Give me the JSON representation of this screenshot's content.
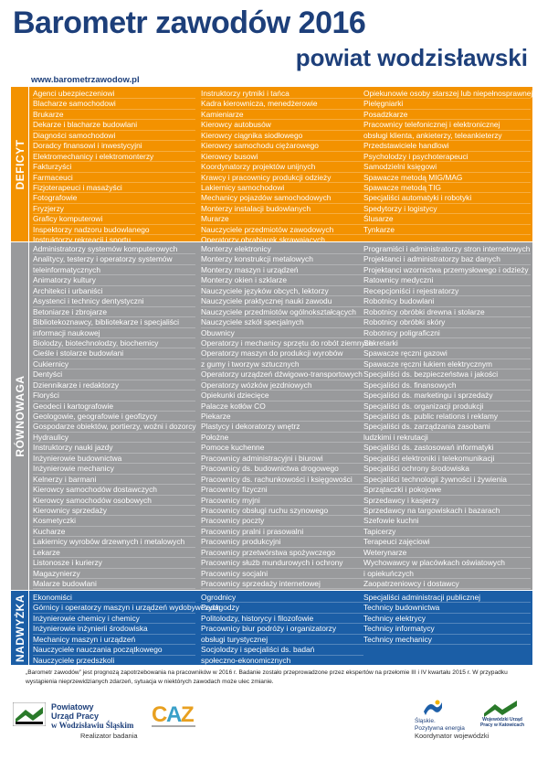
{
  "header": {
    "title": "Barometr zawodów 2016",
    "subtitle": "powiat wodzisławski",
    "url": "www.barometrzawodow.pl"
  },
  "sections": [
    {
      "label": "DEFICYT",
      "columns": [
        [
          "Agenci ubezpieczeniowi",
          "Blacharze samochodowi",
          "Brukarze",
          "Dekarze i blacharze budowlani",
          "Diagności samochodowi",
          "Doradcy finansowi i inwestycyjni",
          "Elektromechanicy i elektromonterzy",
          "Fakturzyści",
          "Farmaceuci",
          "Fizjoterapeuci i masażyści",
          "Fotografowie",
          "Fryzjerzy",
          "Graficy komputerowi",
          "Inspektorzy nadzoru budowlanego",
          "Instruktorzy rekreacji i sportu"
        ],
        [
          "Instruktorzy rytmiki i tańca",
          "Kadra kierownicza, menedżerowie",
          "Kamieniarze",
          "Kierowcy autobusów",
          "Kierowcy ciągnika siodłowego",
          "Kierowcy samochodu ciężarowego",
          "Kierowcy busowi",
          "Koordynatorzy projektów unijnych",
          "Krawcy i pracownicy produkcji odzieży",
          "Lakiernicy samochodowi",
          "Mechanicy pojazdów samochodowych",
          "Monterzy instalacji budowlanych",
          "Murarze",
          "Nauczyciele przedmiotów zawodowych",
          "Operatorzy obrabiarek skrawających"
        ],
        [
          "Opiekunowie osoby starszej lub niepełnosprawnej",
          "Pielęgniarki",
          "Posadzkarze",
          "Pracownicy telefonicznej i elektronicznej",
          "obsługi klienta, ankieterzy, teleankieterzy",
          "Przedstawiciele handlowi",
          "Psycholodzy i psychoterapeuci",
          "Samodzielni księgowi",
          "Spawacze metodą MIG/MAG",
          "Spawacze metodą TIG",
          "Specjaliści automatyki i robotyki",
          "Spedytorzy i logistycy",
          "Ślusarze",
          "Tynkarze"
        ]
      ]
    },
    {
      "label": "RÓWNOWAGA",
      "columns": [
        [
          "Administratorzy systemów komputerowych",
          "Analitycy, testerzy i operatorzy systemów",
          "teleinformatycznych",
          "Animatorzy kultury",
          "Architekci i urbaniści",
          "Asystenci i technicy dentystyczni",
          "Betoniarze i zbrojarze",
          "Bibliotekoznawcy, bibliotekarze i specjaliści",
          "informacji naukowej",
          "Biolodzy, biotechnolodzy, biochemicy",
          "Cieśle i stolarze budowlani",
          "Cukiernicy",
          "Dentyści",
          "Dziennikarze i redaktorzy",
          "Floryści",
          "Geodeci i kartografowie",
          "Geologowie, geografowie i geofizycy",
          "Gospodarze obiektów, portierzy, woźni i dozorcy",
          "Hydraulicy",
          "Instruktorzy nauki jazdy",
          "Inżynierowie budownictwa",
          "Inżynierowie mechanicy",
          "Kelnerzy i barmani",
          "Kierowcy samochodów dostawczych",
          "Kierowcy samochodów osobowych",
          "Kierownicy sprzedaży",
          "Kosmetyczki",
          "Kucharze",
          "Lakiernicy wyrobów drzewnych i metalowych",
          "Lekarze",
          "Listonosze i kurierzy",
          "Magazynierzy",
          "Malarze budowlani",
          "Masarze i przetwórcy ryb"
        ],
        [
          "Monterzy elektronicy",
          "Monterzy konstrukcji metalowych",
          "Monterzy maszyn i urządzeń",
          "Monterzy okien i szklarze",
          "Nauczyciele języków obcych, lektorzy",
          "Nauczyciele praktycznej nauki zawodu",
          "Nauczyciele przedmiotów ogólnokształcących",
          "Nauczyciele szkół specjalnych",
          "Obuwnicy",
          "Operatorzy i mechanicy sprzętu do robót ziemnych",
          "Operatorzy maszyn do produkcji wyrobów",
          "z gumy i tworzyw sztucznych",
          "Operatorzy urządzeń dźwigowo-transportowych",
          "Operatorzy wózków jezdniowych",
          "Opiekunki dziecięce",
          "Palacze kotłów CO",
          "Piekarze",
          "Plastycy i dekoratorzy wnętrz",
          "Położne",
          "Pomoce kuchenne",
          "Pracownicy administracyjni i biurowi",
          "Pracownicy ds. budownictwa drogowego",
          "Pracownicy ds. rachunkowości i księgowości",
          "Pracownicy fizyczni",
          "Pracownicy myjni",
          "Pracownicy obsługi ruchu szynowego",
          "Pracownicy poczty",
          "Pracownicy pralni i prasowalni",
          "Pracownicy produkcyjni",
          "Pracownicy przetwórstwa spożywczego",
          "Pracownicy służb mundurowych i ochrony",
          "Pracownicy socjalni",
          "Pracownicy sprzedaży internetowej",
          "Prawnicy"
        ],
        [
          "Programiści i administratorzy stron internetowych",
          "Projektanci i administratorzy baz danych",
          "Projektanci wzornictwa przemysłowego i odzieży",
          "Ratownicy medyczni",
          "Recepcjoniści i rejestratorzy",
          "Robotnicy budowlani",
          "Robotnicy obróbki drewna i stolarze",
          "Robotnicy obróbki skóry",
          "Robotnicy poligraficzni",
          "Sekretarki",
          "Spawacze ręczni gazowi",
          "Spawacze ręczni łukiem elektrycznym",
          "Specjaliści ds. bezpieczeństwa i jakości",
          "Specjaliści ds. finansowych",
          "Specjaliści ds. marketingu i sprzedaży",
          "Specjaliści ds. organizacji produkcji",
          "Specjaliści ds. public relations i reklamy",
          "Specjaliści ds. zarządzania zasobami",
          "ludzkimi i rekrutacji",
          "Specjaliści ds. zastosowań informatyki",
          "Specjaliści elektroniki i telekomunikacji",
          "Specjaliści ochrony środowiska",
          "Specjaliści technologii żywności i żywienia",
          "Sprzątaczki i pokojowe",
          "Sprzedawcy i kasjerzy",
          "Sprzedawcy na targowiskach i bazarach",
          "Szefowie kuchni",
          "Tapicerzy",
          "Terapeuci zajęciowi",
          "Weterynarze",
          "Wychowawcy w placówkach oświatowych",
          "i opiekuńczych",
          "Zaopatrzeniowcy i dostawcy"
        ]
      ]
    },
    {
      "label": "NADWYŻKA",
      "columns": [
        [
          "Ekonomiści",
          "Górnicy i operatorzy maszyn i urządzeń wydobywczych",
          "Inżynierowie chemicy i chemicy",
          "Inżynierowie inżynierii środowiska",
          "Mechanicy maszyn i urządzeń",
          "Nauczyciele nauczania początkowego",
          "Nauczyciele przedszkoli"
        ],
        [
          "Ogrodnicy",
          "Pedagodzy",
          "Politolodzy, historycy i filozofowie",
          "Pracownicy biur podróży i organizatorzy",
          "obsługi turystycznej",
          "Socjolodzy i specjaliści ds. badań",
          "społeczno-ekonomicznych"
        ],
        [
          "Specjaliści administracji publicznej",
          "Technicy budownictwa",
          "Technicy elektrycy",
          "Technicy informatycy",
          "Technicy mechanicy"
        ]
      ]
    }
  ],
  "footer": {
    "note": "„Barometr zawodów” jest prognozą zapotrzebowania na pracowników w 2016 r. Badanie zostało przeprowadzone przez ekspertów na przełomie III i IV kwartału 2015 r. W przypadku wystąpienia nieprzewidzianych zdarzeń, sytuacja w niektórych zawodach może ulec zmianie.",
    "left_logo": [
      "Powiatowy",
      "Urząd Pracy",
      "w Wodzisławiu Śląskim"
    ],
    "left_caption": "Realizator badania",
    "right_logo_1": [
      "Śląskie.",
      "Pozytywna energia"
    ],
    "right_logo_2": "Wojewódzki Urząd Pracy w Katowicach",
    "right_caption": "Koordynator wojewódzki"
  }
}
